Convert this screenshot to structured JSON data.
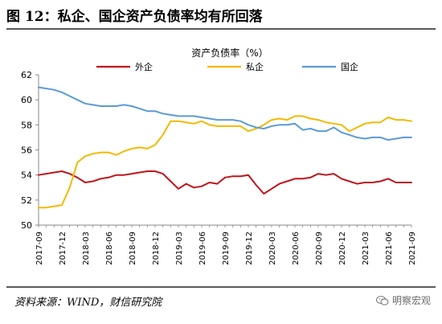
{
  "figure_title": "图 12：私企、国企资产负债率均有所回落",
  "source_text": "资料来源：WIND，财信研究院",
  "watermark_text": "明察宏观",
  "chart_data": {
    "type": "line",
    "title": "资产负债率（%）",
    "xlabel": "",
    "ylabel": "",
    "ylim": [
      50,
      62
    ],
    "yticks": [
      50,
      52,
      54,
      56,
      58,
      60,
      62
    ],
    "grid": false,
    "legend_position": "top",
    "x": [
      "2017-09",
      "2017-10",
      "2017-11",
      "2017-12",
      "2018-01",
      "2018-02",
      "2018-03",
      "2018-04",
      "2018-05",
      "2018-06",
      "2018-07",
      "2018-08",
      "2018-09",
      "2018-10",
      "2018-11",
      "2018-12",
      "2019-01",
      "2019-02",
      "2019-03",
      "2019-04",
      "2019-05",
      "2019-06",
      "2019-07",
      "2019-08",
      "2019-09",
      "2019-10",
      "2019-11",
      "2019-12",
      "2020-01",
      "2020-02",
      "2020-03",
      "2020-04",
      "2020-05",
      "2020-06",
      "2020-07",
      "2020-08",
      "2020-09",
      "2020-10",
      "2020-11",
      "2020-12",
      "2021-01",
      "2021-02",
      "2021-03",
      "2021-04",
      "2021-05",
      "2021-06",
      "2021-07",
      "2021-08",
      "2021-09"
    ],
    "xtick_labels": [
      "2017-09",
      "2017-12",
      "2018-03",
      "2018-06",
      "2018-09",
      "2018-12",
      "2019-03",
      "2019-06",
      "2019-09",
      "2019-12",
      "2020-03",
      "2020-06",
      "2020-09",
      "2020-12",
      "2021-03",
      "2021-06",
      "2021-09"
    ],
    "series": [
      {
        "name": "外企",
        "color": "#c0141b",
        "values": [
          54.0,
          54.1,
          54.2,
          54.3,
          54.1,
          53.8,
          53.4,
          53.5,
          53.7,
          53.8,
          54.0,
          54.0,
          54.1,
          54.2,
          54.3,
          54.3,
          54.1,
          53.5,
          52.9,
          53.3,
          53.0,
          53.1,
          53.4,
          53.3,
          53.8,
          53.9,
          53.9,
          54.0,
          53.2,
          52.5,
          52.9,
          53.3,
          53.5,
          53.7,
          53.7,
          53.8,
          54.1,
          54.0,
          54.1,
          53.7,
          53.5,
          53.3,
          53.4,
          53.4,
          53.5,
          53.7,
          53.4,
          53.4,
          53.4
        ]
      },
      {
        "name": "私企",
        "color": "#f5b800",
        "values": [
          51.4,
          51.4,
          51.5,
          51.6,
          53.0,
          55.0,
          55.5,
          55.7,
          55.8,
          55.8,
          55.6,
          55.9,
          56.1,
          56.2,
          56.1,
          56.4,
          57.2,
          58.3,
          58.3,
          58.2,
          58.1,
          58.3,
          58.0,
          57.9,
          57.9,
          57.9,
          57.9,
          57.5,
          57.7,
          58.0,
          58.4,
          58.5,
          58.4,
          58.7,
          58.7,
          58.5,
          58.4,
          58.2,
          58.1,
          58.0,
          57.5,
          57.8,
          58.1,
          58.2,
          58.2,
          58.6,
          58.4,
          58.4,
          58.3
        ]
      },
      {
        "name": "国企",
        "color": "#5b9bd5",
        "values": [
          61.0,
          60.9,
          60.8,
          60.6,
          60.3,
          60.0,
          59.7,
          59.6,
          59.5,
          59.5,
          59.5,
          59.6,
          59.5,
          59.3,
          59.1,
          59.1,
          58.9,
          58.8,
          58.7,
          58.7,
          58.7,
          58.6,
          58.5,
          58.4,
          58.4,
          58.4,
          58.3,
          58.0,
          57.8,
          57.7,
          57.9,
          58.0,
          58.0,
          58.1,
          57.6,
          57.7,
          57.5,
          57.5,
          57.8,
          57.4,
          57.2,
          57.0,
          56.9,
          57.0,
          57.0,
          56.8,
          56.9,
          57.0,
          57.0
        ]
      }
    ]
  }
}
